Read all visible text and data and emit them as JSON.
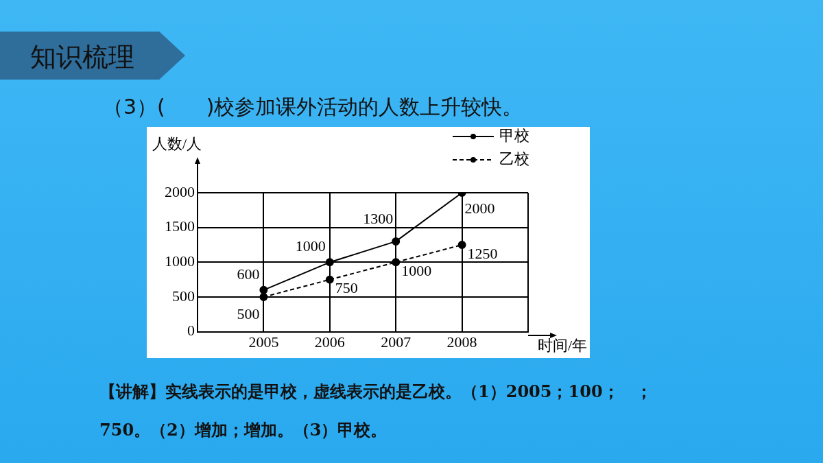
{
  "chart_data": {
    "type": "line",
    "title": "知识梳理",
    "subtitle": "（3）(　　)校参加课外活动的人数上升较快。",
    "xlabel": "时间/年",
    "ylabel": "人数/人",
    "x": [
      2005,
      2006,
      2007,
      2008
    ],
    "series": [
      {
        "name": "甲校",
        "color": "#000000",
        "values": [
          600,
          1000,
          1300,
          2000
        ],
        "line_style": "solid"
      },
      {
        "name": "乙校",
        "color": "#000000",
        "values": [
          500,
          750,
          1000,
          1250
        ],
        "line_style": "dashed"
      }
    ],
    "xlim": [
      2004,
      2009
    ],
    "xticks": [
      2005,
      2006,
      2007,
      2008,
      {
        "value": 2009,
        "label": null
      }
    ],
    "ylim": [
      0,
      2000
    ],
    "yticks": [
      0,
      500,
      1000,
      1500,
      2000
    ],
    "grid": true,
    "legend": "top right",
    "marker": "circle",
    "data_labels": true,
    "annotations": [
      "【讲解】实线表示的是甲校，虚线表示的是乙校。（1）2005；100；　；",
      "750。（2）增加；增加。（3）甲校。"
    ]
  }
}
